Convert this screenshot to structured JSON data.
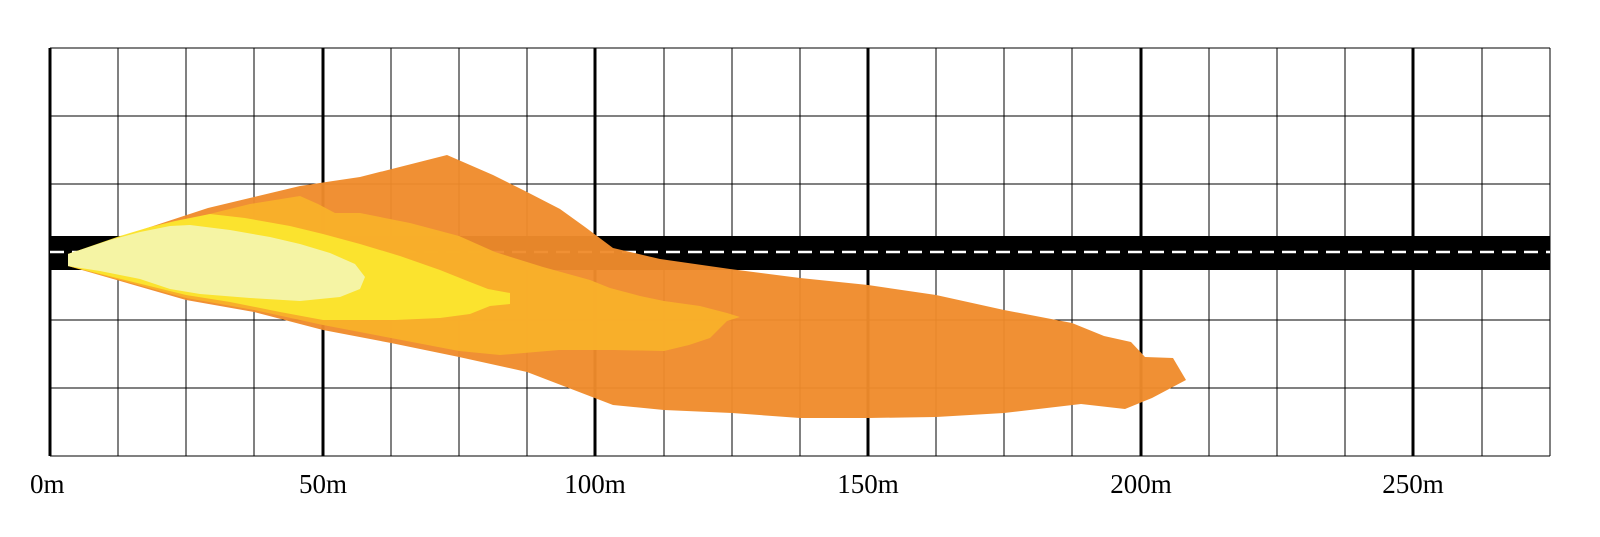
{
  "x_axis": {
    "unit": "m",
    "range": [
      0,
      275
    ],
    "minor_step": 12.5,
    "major_step": 50,
    "tick_labels": [
      "0m",
      "50m",
      "100m",
      "150m",
      "200m",
      "250m"
    ]
  },
  "road": {
    "center_dashes": true,
    "color": "#000000",
    "dash_color": "#ffffff"
  },
  "beam_zones": [
    {
      "zone": "outer",
      "color": "#EF8B2C"
    },
    {
      "zone": "mid",
      "color": "#F9B22A"
    },
    {
      "zone": "inner",
      "color": "#FBE62E"
    },
    {
      "zone": "core",
      "color": "#F5F5A8"
    }
  ]
}
